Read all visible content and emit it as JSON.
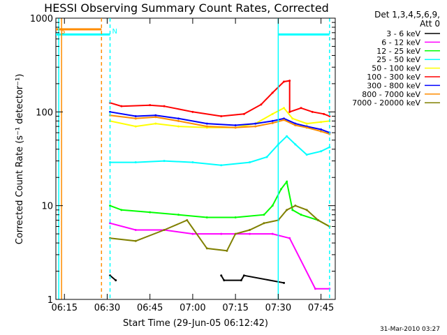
{
  "chart_data": {
    "type": "line",
    "title": "HESSI Observing Summary Count Rates, Corrected",
    "ylabel": "Corrected Count Rate (s⁻¹ detector⁻¹)",
    "xlabel": "Start Time (29-Jun-05 06:12:42)",
    "y_scale": "log",
    "ylim": [
      1,
      1000
    ],
    "xlim": [
      "06:12",
      "07:50"
    ],
    "x_ticks": [
      "06:15",
      "06:30",
      "06:45",
      "07:00",
      "07:15",
      "07:30",
      "07:45"
    ],
    "y_ticks": [
      "1",
      "10",
      "100",
      "1000"
    ],
    "grid": false,
    "legend_header": [
      "Det 1,3,4,5,6,9,",
      "Att 0"
    ],
    "legend_position": "right",
    "footer_date": "31-Mar-2010 03:27",
    "markers": [
      {
        "label": "S",
        "x": "06:13"
      },
      {
        "label": "N",
        "x": "06:31"
      }
    ],
    "series": [
      {
        "name": "3 - 6 keV",
        "color": "#000000",
        "x": [
          "06:31",
          "06:33",
          "06:45",
          "06:50",
          "07:10",
          "07:11",
          "07:17",
          "07:18",
          "07:32"
        ],
        "y": [
          1.8,
          1.6,
          null,
          null,
          1.8,
          1.6,
          1.6,
          1.8,
          1.5
        ]
      },
      {
        "name": "6 - 12 keV",
        "color": "#ff00ff",
        "x": [
          "06:31",
          "06:40",
          "06:50",
          "07:00",
          "07:10",
          "07:20",
          "07:28",
          "07:34",
          "07:43",
          "07:48"
        ],
        "y": [
          6.5,
          5.5,
          5.5,
          5.0,
          5.0,
          5.0,
          5.0,
          4.5,
          1.3,
          1.3
        ]
      },
      {
        "name": "12 - 25 keV",
        "color": "#00ff00",
        "x": [
          "06:31",
          "06:35",
          "06:45",
          "06:55",
          "07:05",
          "07:15",
          "07:25",
          "07:28",
          "07:31",
          "07:33",
          "07:35",
          "07:38",
          "07:44",
          "07:48"
        ],
        "y": [
          10,
          9,
          8.5,
          8,
          7.5,
          7.5,
          8,
          10,
          15,
          18,
          9,
          8,
          7,
          6
        ]
      },
      {
        "name": "25 - 50 keV",
        "color": "#00ffff",
        "x": [
          "06:31",
          "06:40",
          "06:50",
          "07:00",
          "07:10",
          "07:20",
          "07:26",
          "07:30",
          "07:33",
          "07:36",
          "07:40",
          "07:45",
          "07:48"
        ],
        "y": [
          29,
          29,
          30,
          29,
          27,
          29,
          33,
          45,
          55,
          45,
          35,
          38,
          42
        ]
      },
      {
        "name": "50 - 100 keV",
        "color": "#ffff00",
        "x": [
          "06:31",
          "06:40",
          "06:47",
          "06:55",
          "07:05",
          "07:15",
          "07:22",
          "07:28",
          "07:32",
          "07:35",
          "07:40",
          "07:45",
          "07:48"
        ],
        "y": [
          80,
          70,
          75,
          70,
          68,
          68,
          75,
          95,
          110,
          85,
          75,
          78,
          80
        ]
      },
      {
        "name": "100 - 300 keV",
        "color": "#ff0000",
        "x": [
          "06:31",
          "06:35",
          "06:45",
          "06:50",
          "07:00",
          "07:10",
          "07:18",
          "07:24",
          "07:28",
          "07:32",
          "07:34",
          "07:34",
          "07:38",
          "07:42",
          "07:46",
          "07:48"
        ],
        "y": [
          125,
          115,
          118,
          115,
          100,
          90,
          95,
          120,
          160,
          210,
          215,
          100,
          110,
          100,
          95,
          90
        ]
      },
      {
        "name": "300 - 800 keV",
        "color": "#0000ff",
        "x": [
          "06:31",
          "06:40",
          "06:47",
          "06:55",
          "07:05",
          "07:15",
          "07:22",
          "07:28",
          "07:32",
          "07:36",
          "07:40",
          "07:45",
          "07:48"
        ],
        "y": [
          100,
          90,
          92,
          85,
          75,
          72,
          75,
          80,
          85,
          75,
          70,
          65,
          60
        ]
      },
      {
        "name": "800 - 7000 keV",
        "color": "#ff8c00",
        "x": [
          "06:31",
          "06:40",
          "06:47",
          "06:55",
          "07:05",
          "07:15",
          "07:22",
          "07:28",
          "07:32",
          "07:36",
          "07:40",
          "07:45",
          "07:48"
        ],
        "y": [
          92,
          85,
          88,
          80,
          70,
          68,
          70,
          76,
          82,
          72,
          68,
          62,
          58
        ]
      },
      {
        "name": "7000 - 20000 keV",
        "color": "#808000",
        "x": [
          "06:31",
          "06:40",
          "06:50",
          "06:58",
          "07:05",
          "07:12",
          "07:15",
          "07:20",
          "07:25",
          "07:30",
          "07:33",
          "07:36",
          "07:40",
          "07:44",
          "07:48"
        ],
        "y": [
          4.5,
          4.2,
          5.5,
          7,
          3.5,
          3.3,
          5,
          5.5,
          6.5,
          7,
          9,
          10,
          9,
          7,
          6
        ]
      }
    ],
    "event_lines": [
      {
        "x": "06:13",
        "color": "#00ffff",
        "style": "solid"
      },
      {
        "x": "06:14",
        "color": "#ff8c00",
        "style": "solid"
      },
      {
        "x": "06:28",
        "color": "#ff8c00",
        "style": "dashed"
      },
      {
        "x": "06:31",
        "color": "#00ffff",
        "style": "dashed"
      },
      {
        "x": "07:30",
        "color": "#00ffff",
        "style": "solid"
      },
      {
        "x": "07:48",
        "color": "#00ffff",
        "style": "dashed"
      }
    ],
    "top_bars": [
      {
        "x": [
          "06:12",
          "06:28"
        ],
        "y": 760,
        "color": "#ff8c00"
      },
      {
        "x": [
          "06:12",
          "06:31"
        ],
        "y": 670,
        "color": "#00ffff"
      },
      {
        "x": [
          "07:30",
          "07:48"
        ],
        "y": 670,
        "color": "#00ffff"
      }
    ]
  }
}
